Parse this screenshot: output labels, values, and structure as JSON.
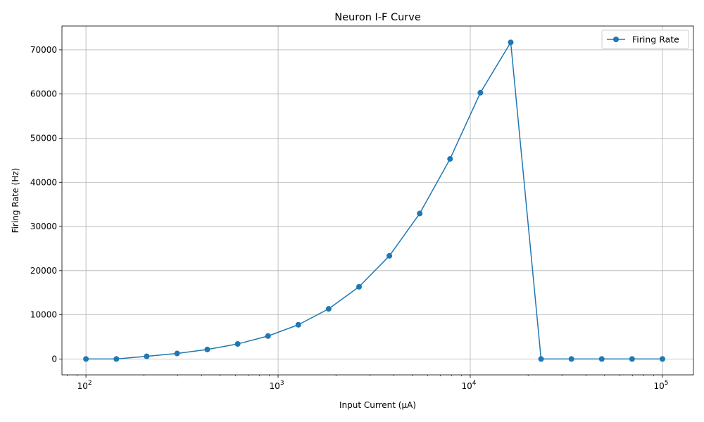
{
  "chart_data": {
    "type": "line",
    "title": "Neuron I-F Curve",
    "xlabel": "Input Current (μA)",
    "ylabel": "Firing Rate (Hz)",
    "xscale": "log",
    "xlim": [
      75,
      145000
    ],
    "ylim": [
      -3600,
      75400
    ],
    "x_ticks": [
      {
        "value": 100,
        "base": "10",
        "exp": "2"
      },
      {
        "value": 1000,
        "base": "10",
        "exp": "3"
      },
      {
        "value": 10000,
        "base": "10",
        "exp": "4"
      },
      {
        "value": 100000,
        "base": "10",
        "exp": "5"
      }
    ],
    "y_ticks": [
      0,
      10000,
      20000,
      30000,
      40000,
      50000,
      60000,
      70000
    ],
    "grid": true,
    "legend_position": "top-right",
    "color": "#1f77b4",
    "series": [
      {
        "name": "Firing Rate",
        "x": [
          100,
          144,
          207,
          298,
          428,
          616,
          886,
          1274,
          1833,
          2637,
          3793,
          5456,
          7848,
          11288,
          16238,
          23357,
          33598,
          48329,
          69519,
          100000
        ],
        "y": [
          0,
          0,
          600,
          1250,
          2150,
          3400,
          5200,
          7750,
          11350,
          16350,
          23350,
          32950,
          45300,
          60300,
          71700,
          0,
          0,
          0,
          0,
          0
        ]
      }
    ]
  }
}
